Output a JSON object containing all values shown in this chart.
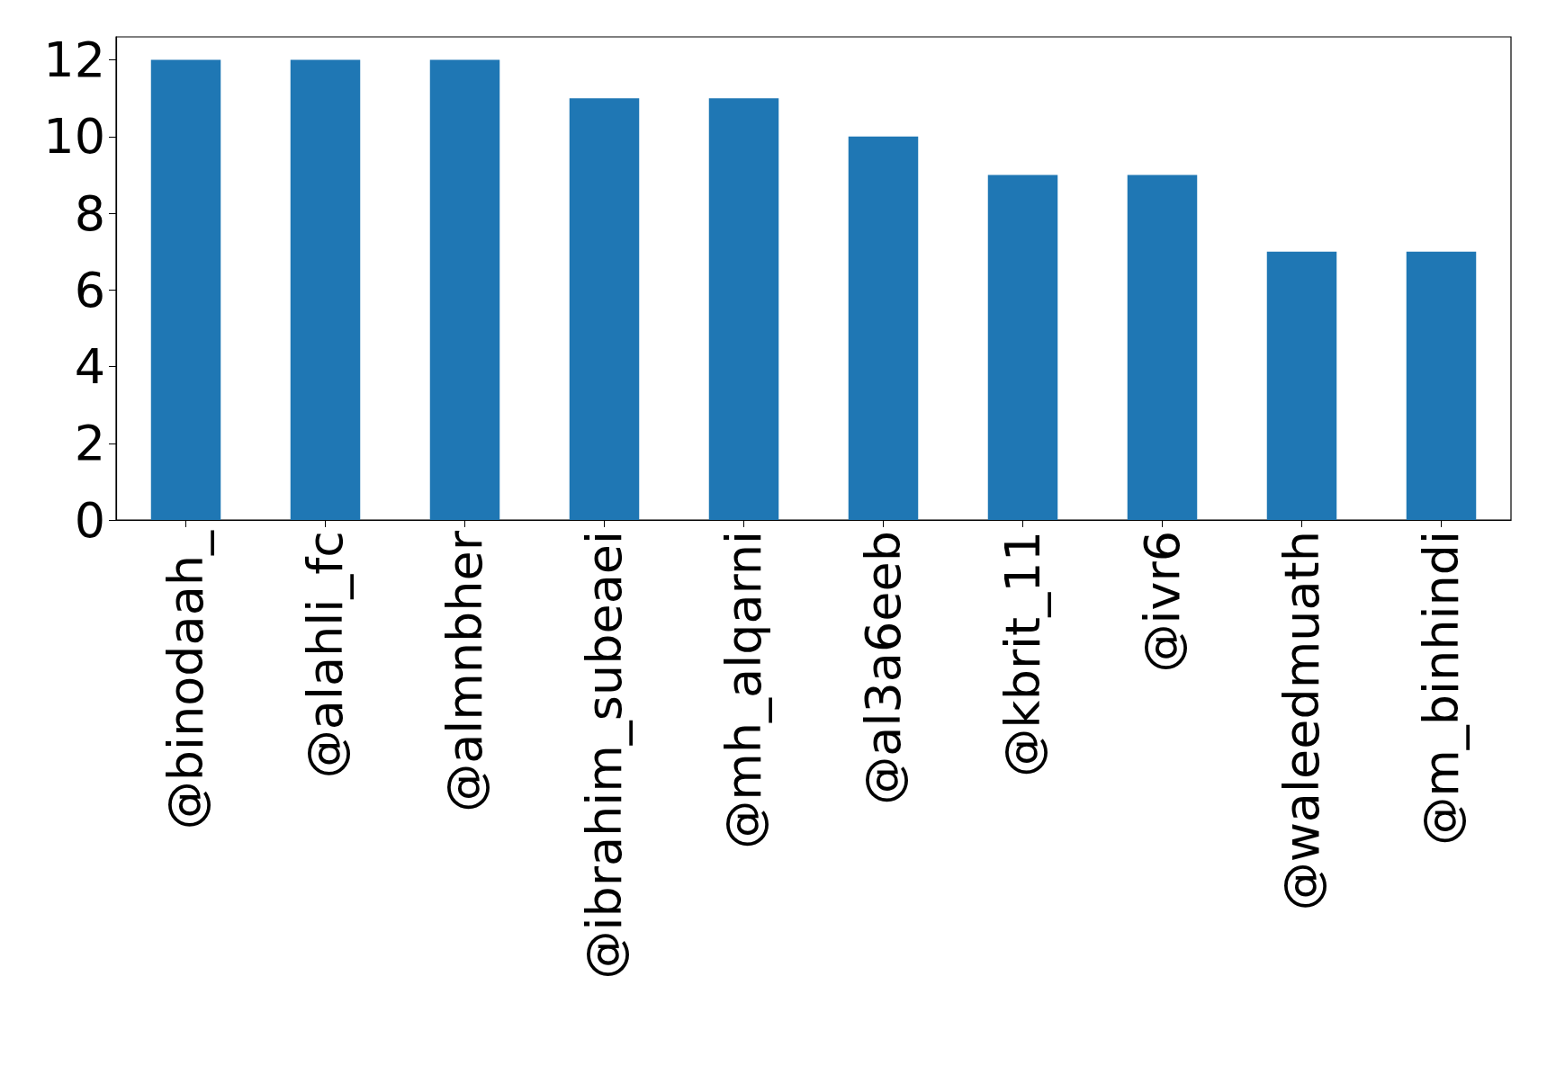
{
  "chart_data": {
    "type": "bar",
    "categories": [
      "@binodaah_",
      "@alahli_fc",
      "@almnbher",
      "@ibrahim_subeaei",
      "@mh_alqarni",
      "@al3a6eeb",
      "@kbrit_11",
      "@ivr6",
      "@waleedmuath",
      "@m_binhindi"
    ],
    "values": [
      12,
      12,
      12,
      11,
      11,
      10,
      9,
      9,
      7,
      7
    ],
    "color": "#1f77b4",
    "ylim": [
      0,
      12.6
    ],
    "yticks": [
      0,
      2,
      4,
      6,
      8,
      10,
      12
    ],
    "grid": false
  }
}
